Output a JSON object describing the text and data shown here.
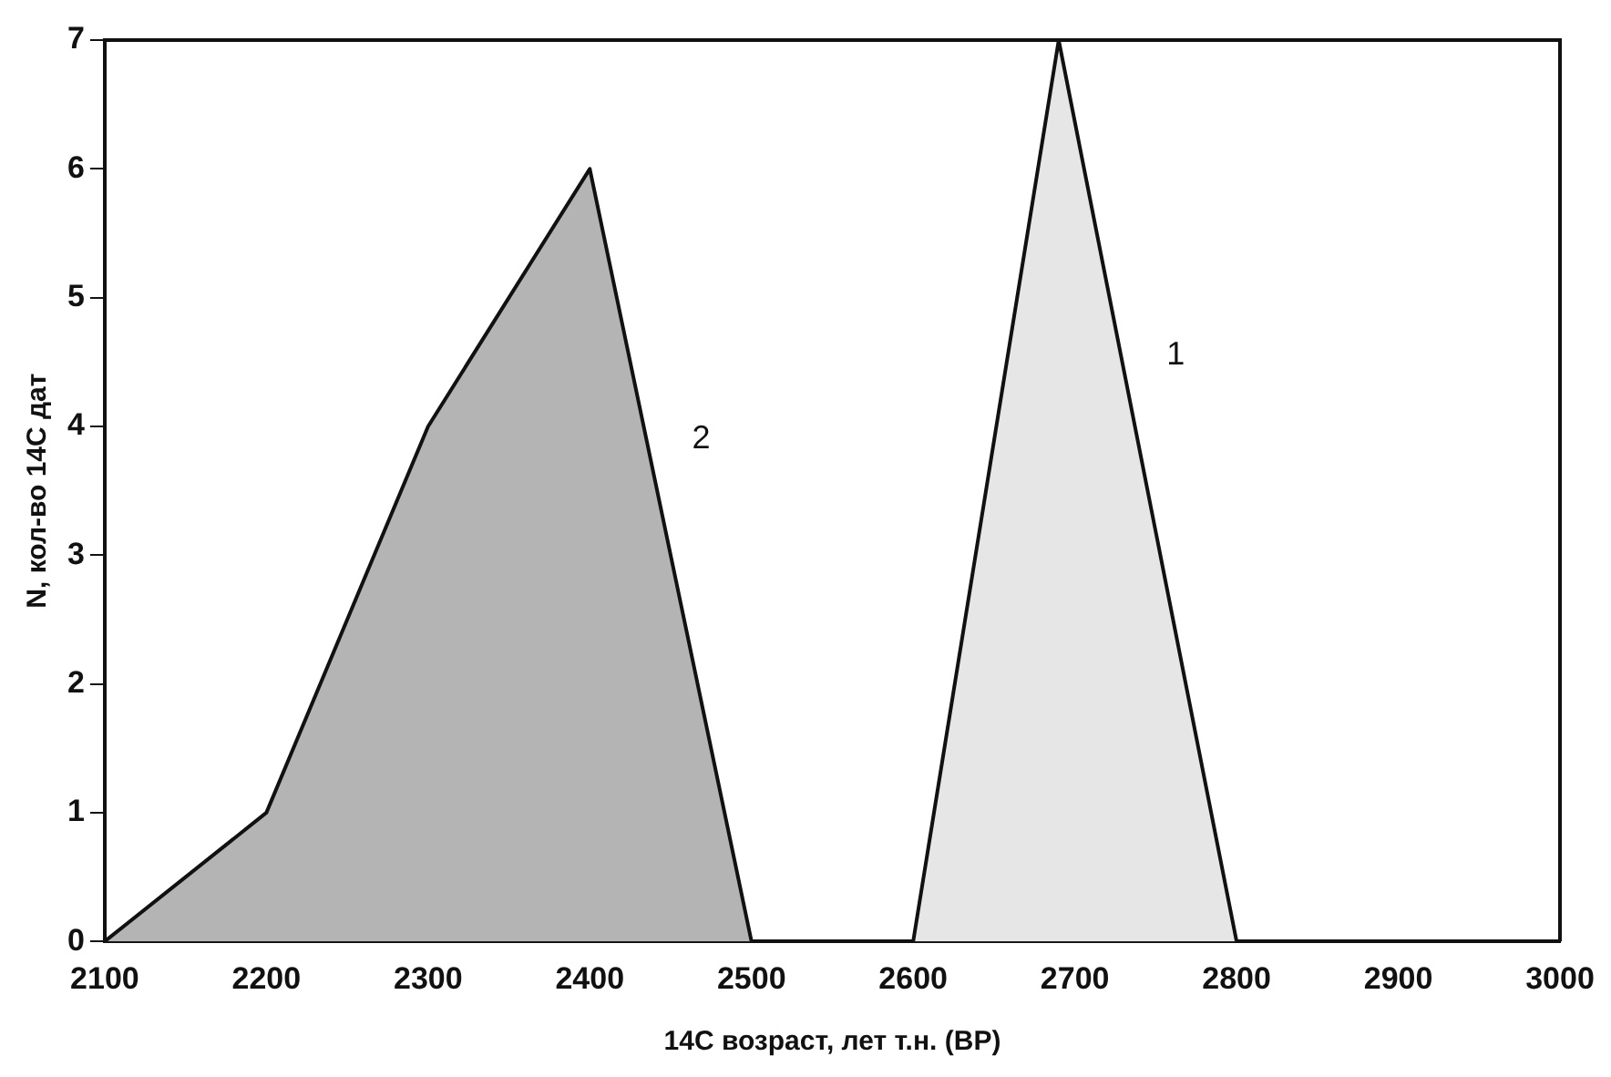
{
  "chart_data": {
    "type": "area",
    "xlabel": "14C возраст, лет т.н. (BP)",
    "ylabel": "N, кол-во 14C дат",
    "series": [
      {
        "name": "1",
        "color": "#e6e6e6",
        "x": [
          2600,
          2690,
          2800
        ],
        "values": [
          0,
          7,
          0
        ]
      },
      {
        "name": "2",
        "color": "#b4b4b4",
        "x": [
          2100,
          2200,
          2300,
          2400,
          2500
        ],
        "values": [
          0,
          1,
          4,
          6,
          0
        ]
      }
    ],
    "xlim": [
      2100,
      3000
    ],
    "xticks": [
      2100,
      2200,
      2300,
      2400,
      2500,
      2600,
      2700,
      2800,
      2900,
      3000
    ],
    "ylim": [
      0,
      7
    ],
    "yticks": [
      0,
      1,
      2,
      3,
      4,
      5,
      6,
      7
    ],
    "grid": false,
    "legend": false
  }
}
